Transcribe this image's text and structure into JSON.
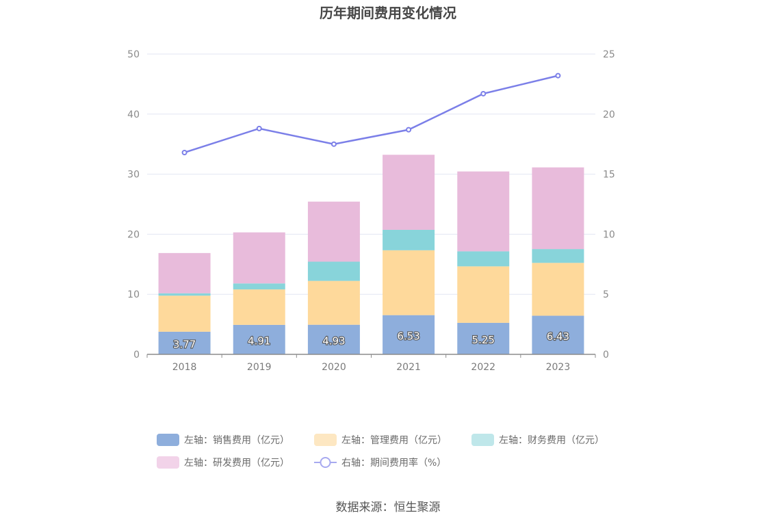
{
  "chart_data": {
    "type": "bar",
    "stacked": true,
    "title": "历年期间费用变化情况",
    "categories": [
      "2018",
      "2019",
      "2020",
      "2021",
      "2022",
      "2023"
    ],
    "y_left": {
      "ylim": [
        0,
        50
      ],
      "ticks": [
        "0",
        "10",
        "20",
        "30",
        "40",
        "50"
      ]
    },
    "y_right": {
      "ylim": [
        0,
        25
      ],
      "ticks": [
        "0",
        "5",
        "10",
        "15",
        "20",
        "25"
      ]
    },
    "series": [
      {
        "name": "左轴：销售费用（亿元）",
        "type": "bar",
        "axis": "left",
        "color": "#8eaedc",
        "values": [
          3.77,
          4.91,
          4.93,
          6.53,
          5.25,
          6.43
        ],
        "labels": [
          "3.77",
          "4.91",
          "4.93",
          "6.53",
          "5.25",
          "6.43"
        ]
      },
      {
        "name": "左轴：管理费用（亿元）",
        "type": "bar",
        "axis": "left",
        "color": "#fed99b",
        "values": [
          6.0,
          5.9,
          7.3,
          10.8,
          9.4,
          8.8
        ]
      },
      {
        "name": "左轴：财务费用（亿元）",
        "type": "bar",
        "axis": "left",
        "color": "#88d4da",
        "values": [
          0.4,
          1.0,
          3.2,
          3.4,
          2.5,
          2.3
        ]
      },
      {
        "name": "左轴：研发费用（亿元）",
        "type": "bar",
        "axis": "left",
        "color": "#e8bbdb",
        "values": [
          6.7,
          8.5,
          10.0,
          12.5,
          13.3,
          13.6
        ]
      },
      {
        "name": "右轴：期间费用率（%）",
        "type": "line",
        "axis": "right",
        "color": "#7b7fe8",
        "values": [
          16.8,
          18.8,
          17.5,
          18.7,
          21.7,
          23.2
        ]
      }
    ],
    "legend_position": "bottom",
    "grid": true
  },
  "legend": {
    "items": [
      {
        "label": "左轴：销售费用（亿元）",
        "color": "#8eaedc",
        "kind": "rect"
      },
      {
        "label": "左轴：管理费用（亿元）",
        "color": "#fde7c2",
        "kind": "rect"
      },
      {
        "label": "左轴：财务费用（亿元）",
        "color": "#bfe7ea",
        "kind": "rect"
      },
      {
        "label": "左轴：研发费用（亿元）",
        "color": "#f2d3e9",
        "kind": "rect"
      },
      {
        "label": "右轴：期间费用率（%）",
        "color": "#a7a9f0",
        "kind": "line"
      }
    ]
  },
  "source": "数据来源：恒生聚源"
}
